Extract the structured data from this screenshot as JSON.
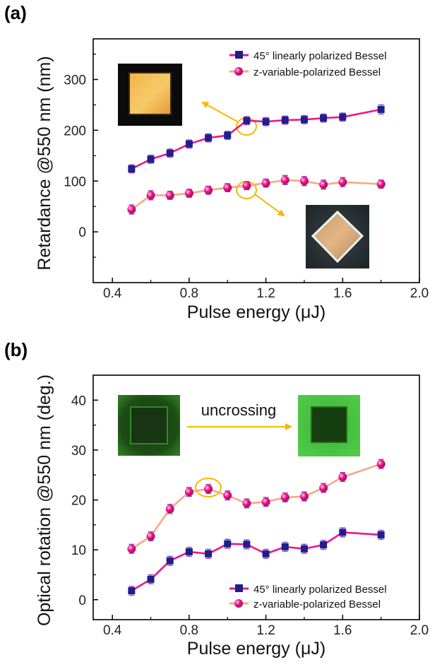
{
  "colors": {
    "linear": "#f0148a",
    "linear_marker": "#1f1f8c",
    "zvar": "#f7a882",
    "zvar_marker": "#f0148a",
    "arrow": "#f5b800",
    "errorbar": "#8a45c8"
  },
  "chart_data": [
    {
      "type": "line",
      "panel": "(a)",
      "xlabel": "Pulse energy (μJ)",
      "ylabel": "Retardance @550 nm (nm)",
      "xlim": [
        0.3,
        2.0
      ],
      "ylim": [
        -100,
        380
      ],
      "xticks": [
        "0.4",
        "0.8",
        "1.2",
        "1.6",
        "2.0"
      ],
      "yticks": [
        "0",
        "100",
        "200",
        "300"
      ],
      "legend_position": "top-right",
      "series": [
        {
          "name": "45° linearly polarized Bessel",
          "x": [
            0.5,
            0.6,
            0.7,
            0.8,
            0.9,
            1.0,
            1.1,
            1.2,
            1.3,
            1.4,
            1.5,
            1.6,
            1.8
          ],
          "y": [
            124,
            143,
            155,
            173,
            185,
            190,
            219,
            217,
            220,
            221,
            224,
            226,
            241
          ],
          "err": [
            8,
            8,
            8,
            8,
            8,
            8,
            8,
            8,
            8,
            8,
            8,
            8,
            9
          ]
        },
        {
          "name": "z-variable-polarized Bessel",
          "x": [
            0.5,
            0.6,
            0.7,
            0.8,
            0.9,
            1.0,
            1.1,
            1.2,
            1.3,
            1.4,
            1.5,
            1.6,
            1.8
          ],
          "y": [
            44,
            72,
            72,
            76,
            82,
            87,
            91,
            96,
            102,
            100,
            93,
            98,
            94
          ],
          "err": [
            9,
            9,
            8,
            8,
            8,
            8,
            8,
            8,
            9,
            9,
            9,
            9,
            8
          ]
        }
      ]
    },
    {
      "type": "line",
      "panel": "(b)",
      "xlabel": "Pulse energy (μJ)",
      "ylabel": "Optical rotation @550 nm (deg.)",
      "xlim": [
        0.3,
        2.0
      ],
      "ylim": [
        -4,
        45
      ],
      "xticks": [
        "0.4",
        "0.8",
        "1.2",
        "1.6",
        "2.0"
      ],
      "yticks": [
        "0",
        "10",
        "20",
        "30",
        "40"
      ],
      "legend_position": "bottom-right",
      "annotation": "uncrossing",
      "series": [
        {
          "name": "45° linearly polarized Bessel",
          "x": [
            0.5,
            0.6,
            0.7,
            0.8,
            0.9,
            1.0,
            1.1,
            1.2,
            1.3,
            1.4,
            1.5,
            1.6,
            1.8
          ],
          "y": [
            1.8,
            4.1,
            7.8,
            9.6,
            9.2,
            11.2,
            11.1,
            9.2,
            10.6,
            10.2,
            11.0,
            13.5,
            13.0
          ],
          "err": [
            0.9,
            0.9,
            0.9,
            0.9,
            0.9,
            0.9,
            0.9,
            0.9,
            0.9,
            0.9,
            0.9,
            0.9,
            0.9
          ]
        },
        {
          "name": "z-variable-polarized Bessel",
          "x": [
            0.5,
            0.6,
            0.7,
            0.8,
            0.9,
            1.0,
            1.1,
            1.2,
            1.3,
            1.4,
            1.5,
            1.6,
            1.8
          ],
          "y": [
            10.2,
            12.7,
            18.2,
            21.6,
            22.2,
            20.9,
            19.3,
            19.6,
            20.5,
            20.7,
            22.4,
            24.6,
            27.2
          ],
          "err": [
            0.9,
            0.9,
            0.9,
            0.9,
            0.9,
            0.9,
            0.9,
            0.9,
            0.9,
            0.9,
            0.9,
            0.9,
            0.9
          ]
        }
      ]
    }
  ]
}
